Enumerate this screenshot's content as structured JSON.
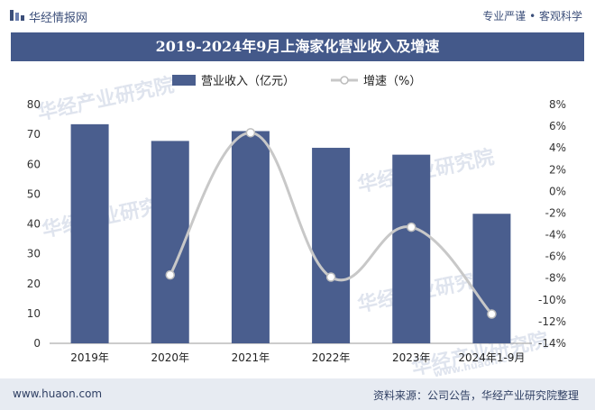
{
  "header": {
    "brand": "华经情报网",
    "slogan": "专业严谨 • 客观科学"
  },
  "watermark": {
    "text": "华经产业研究院",
    "url": "www.huaon.com"
  },
  "footer": {
    "url": "www.huaon.com",
    "source": "资料来源：公司公告，华经产业研究院整理"
  },
  "colors": {
    "bar": "#4a5e8e",
    "line": "#c8c8c8",
    "title_bg": "#44598a"
  },
  "chart_data": {
    "type": "bar+line",
    "title": "2019-2024年9月上海家化营业收入及增速",
    "categories": [
      "2019年",
      "2020年",
      "2021年",
      "2022年",
      "2023年",
      "2024年1-9月"
    ],
    "series": [
      {
        "name": "营业收入（亿元）",
        "type": "bar",
        "axis": "left",
        "values": [
          73.4,
          67.8,
          71.1,
          65.5,
          63.2,
          43.4
        ]
      },
      {
        "name": "增速（%）",
        "type": "line",
        "axis": "right",
        "values": [
          null,
          -7.7,
          5.4,
          -7.9,
          -3.3,
          -11.3
        ]
      }
    ],
    "left_axis": {
      "ylim": [
        0,
        80
      ],
      "ticks": [
        "0",
        "10",
        "20",
        "30",
        "40",
        "50",
        "60",
        "70",
        "80"
      ]
    },
    "right_axis": {
      "ylim": [
        -14,
        8
      ],
      "ticks": [
        "-14%",
        "-12%",
        "-10%",
        "-8%",
        "-6%",
        "-4%",
        "-2%",
        "0%",
        "2%",
        "4%",
        "6%",
        "8%"
      ]
    },
    "legend_position": "top",
    "grid": false
  }
}
